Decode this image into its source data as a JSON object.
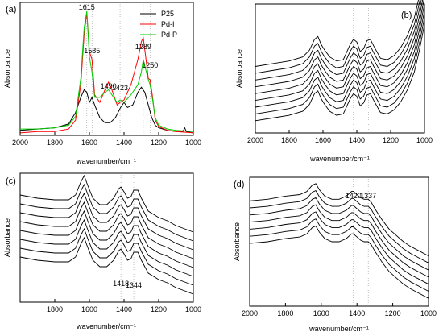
{
  "chart_data": [
    {
      "type": "line",
      "panel_label": "(a)",
      "xlabel": "wavenumber/cm⁻¹",
      "ylabel": "Absorbance",
      "xlim": [
        2000,
        1000
      ],
      "x_reversed": true,
      "xticks": [
        "2000",
        "1800",
        "1600",
        "1400",
        "1200",
        "1000"
      ],
      "y_ticks_shown": false,
      "legend_position": "top-right",
      "series": [
        {
          "name": "P25",
          "color": "#000000",
          "points": [
            [
              2000,
              0.04
            ],
            [
              1900,
              0.05
            ],
            [
              1800,
              0.06
            ],
            [
              1720,
              0.09
            ],
            [
              1680,
              0.18
            ],
            [
              1650,
              0.3
            ],
            [
              1630,
              0.36
            ],
            [
              1615,
              0.34
            ],
            [
              1600,
              0.26
            ],
            [
              1585,
              0.3
            ],
            [
              1570,
              0.24
            ],
            [
              1540,
              0.14
            ],
            [
              1510,
              0.1
            ],
            [
              1480,
              0.1
            ],
            [
              1450,
              0.14
            ],
            [
              1420,
              0.22
            ],
            [
              1400,
              0.26
            ],
            [
              1380,
              0.22
            ],
            [
              1350,
              0.24
            ],
            [
              1320,
              0.34
            ],
            [
              1300,
              0.38
            ],
            [
              1280,
              0.34
            ],
            [
              1260,
              0.24
            ],
            [
              1240,
              0.14
            ],
            [
              1220,
              0.08
            ],
            [
              1200,
              0.06
            ],
            [
              1150,
              0.04
            ],
            [
              1100,
              0.03
            ],
            [
              1060,
              0.03
            ],
            [
              1050,
              0.06
            ],
            [
              1040,
              0.03
            ],
            [
              1000,
              0.02
            ]
          ]
        },
        {
          "name": "Pd-I",
          "color": "#ff0000",
          "points": [
            [
              2000,
              0.02
            ],
            [
              1900,
              0.03
            ],
            [
              1800,
              0.03
            ],
            [
              1720,
              0.05
            ],
            [
              1680,
              0.12
            ],
            [
              1650,
              0.4
            ],
            [
              1630,
              0.8
            ],
            [
              1615,
              0.97
            ],
            [
              1600,
              0.66
            ],
            [
              1585,
              0.6
            ],
            [
              1570,
              0.32
            ],
            [
              1540,
              0.26
            ],
            [
              1510,
              0.36
            ],
            [
              1490,
              0.42
            ],
            [
              1470,
              0.36
            ],
            [
              1440,
              0.24
            ],
            [
              1423,
              0.26
            ],
            [
              1400,
              0.28
            ],
            [
              1360,
              0.4
            ],
            [
              1320,
              0.6
            ],
            [
              1300,
              0.74
            ],
            [
              1289,
              0.77
            ],
            [
              1275,
              0.62
            ],
            [
              1260,
              0.45
            ],
            [
              1250,
              0.44
            ],
            [
              1235,
              0.3
            ],
            [
              1220,
              0.12
            ],
            [
              1200,
              0.07
            ],
            [
              1150,
              0.04
            ],
            [
              1100,
              0.03
            ],
            [
              1000,
              0.02
            ]
          ]
        },
        {
          "name": "Pd-P",
          "color": "#00cc00",
          "points": [
            [
              2000,
              0.05
            ],
            [
              1900,
              0.05
            ],
            [
              1800,
              0.06
            ],
            [
              1720,
              0.08
            ],
            [
              1680,
              0.15
            ],
            [
              1650,
              0.45
            ],
            [
              1630,
              0.85
            ],
            [
              1615,
              0.98
            ],
            [
              1600,
              0.62
            ],
            [
              1585,
              0.5
            ],
            [
              1570,
              0.3
            ],
            [
              1540,
              0.3
            ],
            [
              1510,
              0.34
            ],
            [
              1490,
              0.36
            ],
            [
              1470,
              0.32
            ],
            [
              1440,
              0.26
            ],
            [
              1423,
              0.28
            ],
            [
              1400,
              0.26
            ],
            [
              1360,
              0.32
            ],
            [
              1320,
              0.4
            ],
            [
              1300,
              0.5
            ],
            [
              1289,
              0.6
            ],
            [
              1275,
              0.52
            ],
            [
              1260,
              0.44
            ],
            [
              1250,
              0.4
            ],
            [
              1235,
              0.28
            ],
            [
              1220,
              0.14
            ],
            [
              1200,
              0.08
            ],
            [
              1150,
              0.05
            ],
            [
              1100,
              0.04
            ],
            [
              1000,
              0.03
            ]
          ]
        }
      ],
      "annotations": [
        {
          "text": "1615",
          "x": 1615
        },
        {
          "text": "1585",
          "x": 1585
        },
        {
          "text": "1490",
          "x": 1490
        },
        {
          "text": "1423",
          "x": 1423
        },
        {
          "text": "1289",
          "x": 1289
        },
        {
          "text": "1250",
          "x": 1250
        }
      ],
      "reference_lines": [
        1615,
        1585,
        1423,
        1289,
        1250
      ]
    },
    {
      "type": "line",
      "panel_label": "(b)",
      "xlabel": "wavenumber/cm⁻¹",
      "ylabel": "Absorbance",
      "xlim": [
        2000,
        1000
      ],
      "x_reversed": true,
      "xticks": [
        "2000",
        "1800",
        "1600",
        "1400",
        "1200",
        "1000"
      ],
      "y_ticks_shown": false,
      "curve_count": 9,
      "curve_spacing": 0.05,
      "base_curve": [
        [
          2000,
          0.14
        ],
        [
          1900,
          0.16
        ],
        [
          1800,
          0.18
        ],
        [
          1720,
          0.21
        ],
        [
          1680,
          0.26
        ],
        [
          1650,
          0.34
        ],
        [
          1630,
          0.36
        ],
        [
          1610,
          0.3
        ],
        [
          1590,
          0.26
        ],
        [
          1560,
          0.21
        ],
        [
          1520,
          0.18
        ],
        [
          1480,
          0.19
        ],
        [
          1440,
          0.3
        ],
        [
          1420,
          0.34
        ],
        [
          1400,
          0.32
        ],
        [
          1380,
          0.25
        ],
        [
          1360,
          0.27
        ],
        [
          1340,
          0.33
        ],
        [
          1320,
          0.34
        ],
        [
          1300,
          0.29
        ],
        [
          1260,
          0.2
        ],
        [
          1220,
          0.19
        ],
        [
          1180,
          0.22
        ],
        [
          1140,
          0.28
        ],
        [
          1100,
          0.37
        ],
        [
          1060,
          0.5
        ],
        [
          1030,
          0.66
        ],
        [
          1000,
          0.85
        ]
      ],
      "reference_lines": [
        1420,
        1330
      ]
    },
    {
      "type": "line",
      "panel_label": "(c)",
      "xlabel": "wavenumber/cm⁻¹",
      "ylabel": "Absorbance",
      "xlim": [
        2000,
        1000
      ],
      "x_reversed": true,
      "xticks": [
        "1800",
        "1600",
        "1400",
        "1200",
        "1000"
      ],
      "y_ticks_shown": false,
      "curve_count": 8,
      "curve_spacing": 0.055,
      "base_curve": [
        [
          2000,
          0.28
        ],
        [
          1900,
          0.26
        ],
        [
          1800,
          0.25
        ],
        [
          1720,
          0.25
        ],
        [
          1680,
          0.28
        ],
        [
          1650,
          0.36
        ],
        [
          1630,
          0.4
        ],
        [
          1610,
          0.34
        ],
        [
          1580,
          0.26
        ],
        [
          1540,
          0.22
        ],
        [
          1500,
          0.22
        ],
        [
          1460,
          0.26
        ],
        [
          1430,
          0.32
        ],
        [
          1418,
          0.33
        ],
        [
          1400,
          0.3
        ],
        [
          1380,
          0.26
        ],
        [
          1360,
          0.27
        ],
        [
          1344,
          0.31
        ],
        [
          1320,
          0.31
        ],
        [
          1300,
          0.26
        ],
        [
          1260,
          0.18
        ],
        [
          1200,
          0.14
        ],
        [
          1150,
          0.12
        ],
        [
          1100,
          0.09
        ],
        [
          1050,
          0.07
        ],
        [
          1000,
          0.05
        ]
      ],
      "annotations": [
        {
          "text": "1418",
          "x": 1418
        },
        {
          "text": "1344",
          "x": 1344
        }
      ],
      "reference_lines": [
        1418,
        1344
      ]
    },
    {
      "type": "line",
      "panel_label": "(d)",
      "xlabel": "wavenumber/cm⁻¹",
      "ylabel": "Absorbance",
      "xlim": [
        2000,
        1000
      ],
      "x_reversed": true,
      "xticks": [
        "2000",
        "1800",
        "1600",
        "1400",
        "1200",
        "1000"
      ],
      "y_ticks_shown": false,
      "curve_count": 7,
      "curve_spacing": 0.045,
      "base_curve": [
        [
          2000,
          0.4
        ],
        [
          1900,
          0.41
        ],
        [
          1800,
          0.43
        ],
        [
          1720,
          0.44
        ],
        [
          1680,
          0.46
        ],
        [
          1650,
          0.5
        ],
        [
          1630,
          0.51
        ],
        [
          1610,
          0.47
        ],
        [
          1580,
          0.43
        ],
        [
          1540,
          0.41
        ],
        [
          1500,
          0.41
        ],
        [
          1460,
          0.43
        ],
        [
          1430,
          0.46
        ],
        [
          1420,
          0.46
        ],
        [
          1400,
          0.44
        ],
        [
          1380,
          0.42
        ],
        [
          1360,
          0.41
        ],
        [
          1337,
          0.41
        ],
        [
          1320,
          0.39
        ],
        [
          1300,
          0.35
        ],
        [
          1260,
          0.28
        ],
        [
          1220,
          0.22
        ],
        [
          1180,
          0.18
        ],
        [
          1140,
          0.14
        ],
        [
          1100,
          0.11
        ],
        [
          1050,
          0.08
        ],
        [
          1000,
          0.05
        ]
      ],
      "annotations": [
        {
          "text": "1420",
          "x": 1420
        },
        {
          "text": "1337",
          "x": 1337
        }
      ],
      "reference_lines": [
        1420,
        1337
      ]
    }
  ]
}
